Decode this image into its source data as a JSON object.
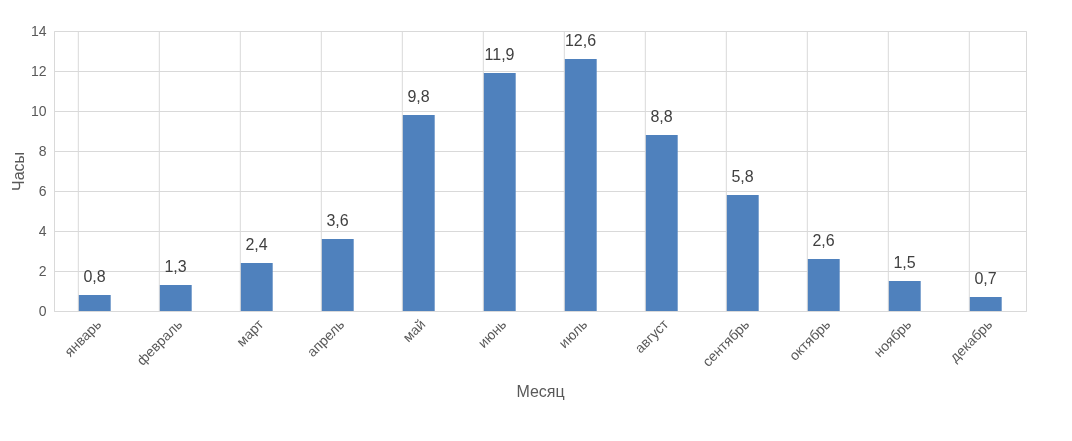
{
  "chart_data": {
    "type": "bar",
    "xlabel": "Месяц",
    "ylabel": "Часы",
    "categories": [
      "январь",
      "февраль",
      "март",
      "апрель",
      "май",
      "июнь",
      "июль",
      "август",
      "сентябрь",
      "октябрь",
      "ноябрь",
      "декабрь"
    ],
    "values": [
      0.8,
      1.3,
      2.4,
      3.6,
      9.8,
      11.9,
      12.6,
      8.8,
      5.8,
      2.6,
      1.5,
      0.7
    ],
    "value_labels": [
      "0,8",
      "1,3",
      "2,4",
      "3,6",
      "9,8",
      "11,9",
      "12,6",
      "8,8",
      "5,8",
      "2,6",
      "1,5",
      "0,7"
    ],
    "color": "#4f81bd",
    "ylim": [
      0,
      14
    ],
    "yticks": [
      0,
      2,
      4,
      6,
      8,
      10,
      12,
      14
    ],
    "grid": true
  }
}
